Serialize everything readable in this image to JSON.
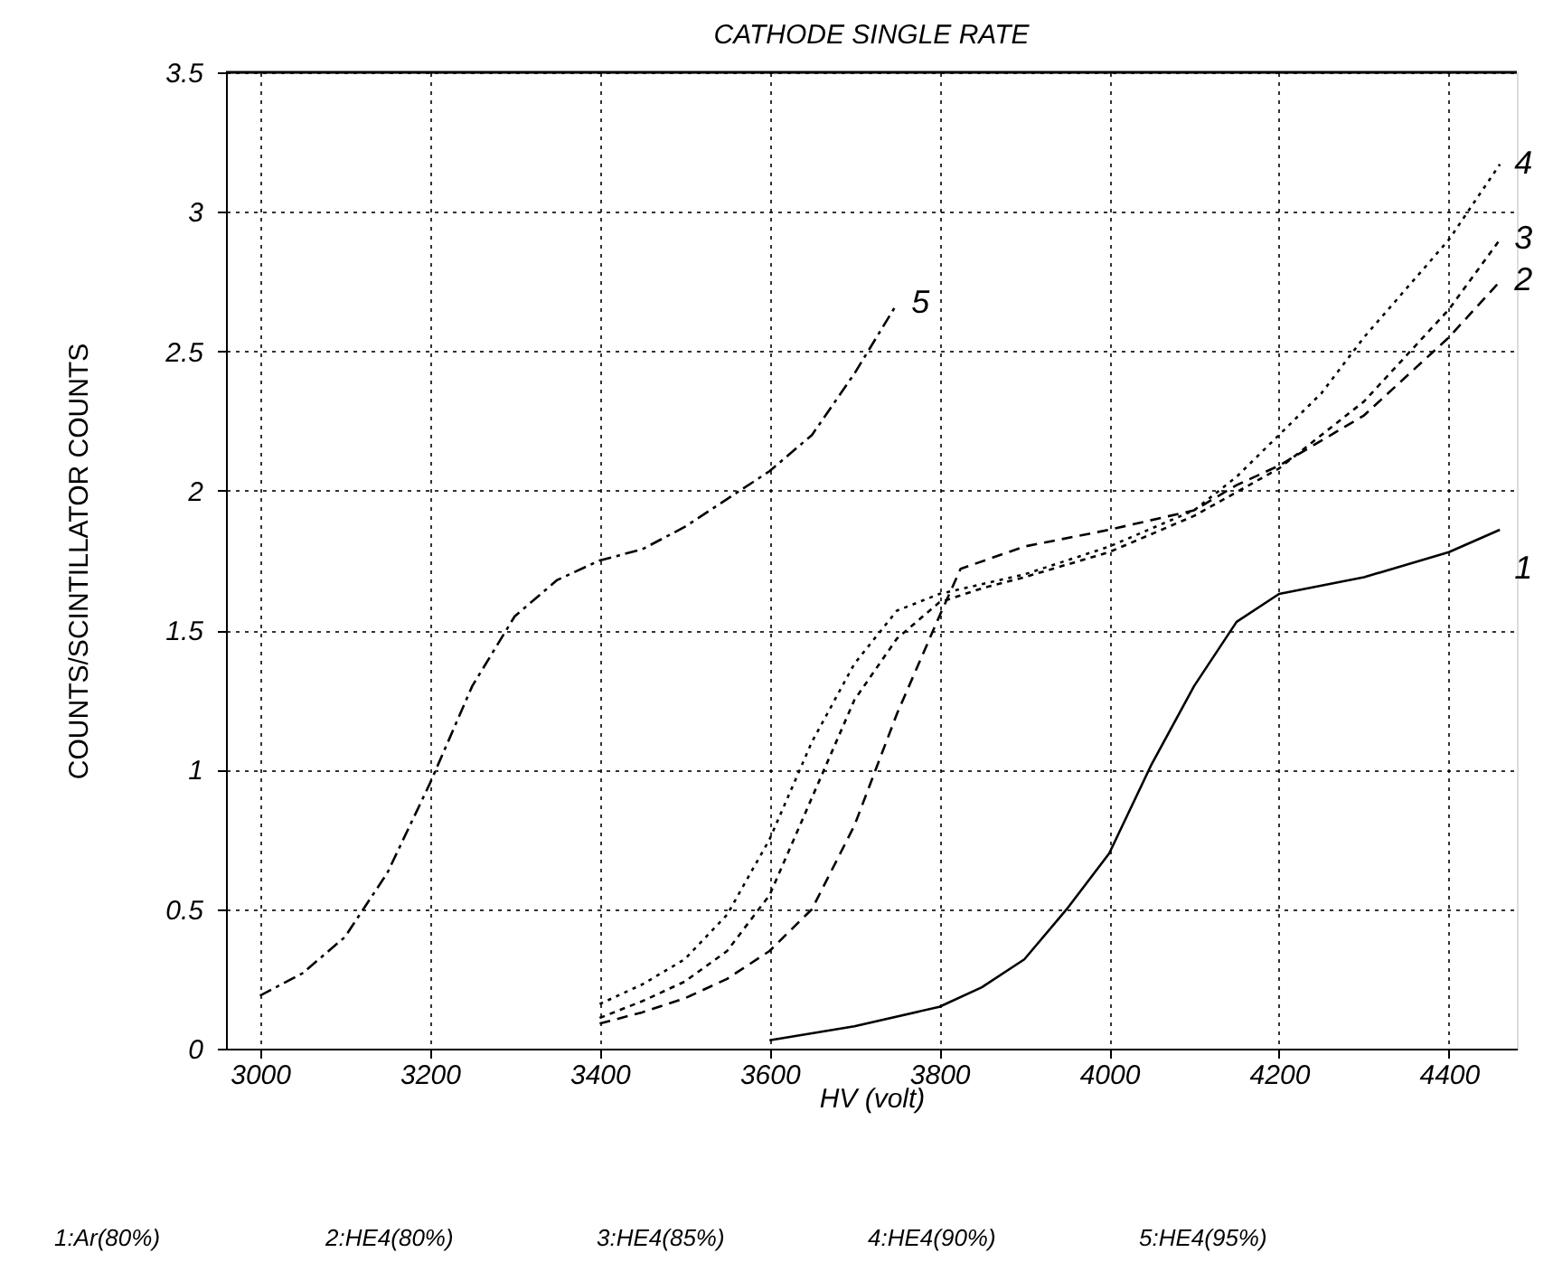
{
  "chart_data": {
    "type": "line",
    "title": "CATHODE SINGLE RATE",
    "xlabel": "HV (volt)",
    "ylabel": "COUNTS/SCINTILLATOR COUNTS",
    "xlim": [
      2960,
      4480
    ],
    "xticks": [
      3000,
      3200,
      3400,
      3600,
      3800,
      4000,
      4200,
      4400
    ],
    "ylim": [
      0,
      3.5
    ],
    "yticks": [
      {
        "value": 0,
        "label": "0"
      },
      0.5,
      {
        "value": 1,
        "label": "1"
      },
      1.5,
      {
        "value": 2,
        "label": "2"
      },
      2.5,
      {
        "value": 3,
        "label": "3"
      },
      3.5
    ],
    "grid": true,
    "legend": false,
    "marker": "none",
    "annotations": [
      "1:Ar(80%)",
      "2:HE4(80%)",
      "3:HE4(85%)",
      "4:HE4(90%)",
      "5:HE4(95%)"
    ],
    "series": [
      {
        "name": "1",
        "color": "#000000",
        "line_style": "solid",
        "x": [
          3600,
          3700,
          3800,
          3850,
          3900,
          3950,
          4000,
          4050,
          4100,
          4150,
          4200,
          4300,
          4400,
          4460
        ],
        "values": [
          0.03,
          0.08,
          0.15,
          0.22,
          0.32,
          0.5,
          0.7,
          1.02,
          1.3,
          1.53,
          1.63,
          1.69,
          1.78,
          1.86
        ]
      },
      {
        "name": "2",
        "color": "#000000",
        "line_style": "dashed",
        "x": [
          3400,
          3450,
          3500,
          3550,
          3600,
          3650,
          3700,
          3750,
          3800,
          3825,
          3900,
          4000,
          4100,
          4150,
          4200,
          4300,
          4400,
          4460
        ],
        "values": [
          0.09,
          0.13,
          0.18,
          0.25,
          0.35,
          0.5,
          0.8,
          1.2,
          1.55,
          1.72,
          1.8,
          1.86,
          1.93,
          2.02,
          2.09,
          2.27,
          2.55,
          2.75
        ]
      },
      {
        "name": "3",
        "color": "#000000",
        "line_style": "dashed",
        "x": [
          3400,
          3450,
          3500,
          3550,
          3600,
          3650,
          3700,
          3750,
          3800,
          3850,
          3900,
          4000,
          4100,
          4200,
          4300,
          4400,
          4460
        ],
        "values": [
          0.11,
          0.17,
          0.24,
          0.35,
          0.55,
          0.9,
          1.25,
          1.47,
          1.6,
          1.65,
          1.69,
          1.78,
          1.91,
          2.08,
          2.32,
          2.65,
          2.9
        ]
      },
      {
        "name": "4",
        "color": "#000000",
        "line_style": "dotted",
        "x": [
          3400,
          3450,
          3500,
          3550,
          3600,
          3650,
          3700,
          3750,
          3800,
          3900,
          4000,
          4100,
          4150,
          4200,
          4250,
          4300,
          4400,
          4460
        ],
        "values": [
          0.16,
          0.23,
          0.32,
          0.48,
          0.75,
          1.1,
          1.38,
          1.57,
          1.63,
          1.7,
          1.8,
          1.93,
          2.05,
          2.2,
          2.35,
          2.55,
          2.9,
          3.17
        ]
      },
      {
        "name": "5",
        "color": "#000000",
        "line_style": "dashed",
        "x": [
          3000,
          3050,
          3100,
          3150,
          3200,
          3250,
          3300,
          3350,
          3400,
          3450,
          3500,
          3550,
          3600,
          3650,
          3700,
          3750
        ],
        "values": [
          0.19,
          0.27,
          0.4,
          0.63,
          0.95,
          1.3,
          1.55,
          1.68,
          1.75,
          1.79,
          1.87,
          1.97,
          2.07,
          2.2,
          2.42,
          2.67
        ]
      }
    ]
  }
}
